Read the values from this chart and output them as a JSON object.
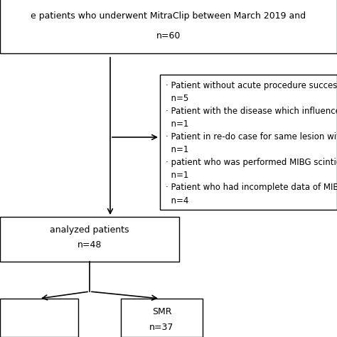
{
  "bg_color": "#ffffff",
  "top_box_line1": "e patients who underwent MitraClip between March 2019 and",
  "top_box_line2": "n=60",
  "excl_lines": [
    "· Patient without acute procedure success",
    "  n=5",
    "· Patient with the disease which influences on",
    "  n=1",
    "· Patient in re-do case for same lesion with prio",
    "  n=1",
    "· patient who was performed MIBG scintigraphy",
    "  n=1",
    "· Patient who had incomplete data of MIBG sci",
    "  n=4"
  ],
  "analyzed_line1": "analyzed patients",
  "analyzed_line2": "n=48",
  "smr_line1": "SMR",
  "smr_line2": "n=37",
  "font_size": 9.0,
  "font_size_excl": 8.5
}
